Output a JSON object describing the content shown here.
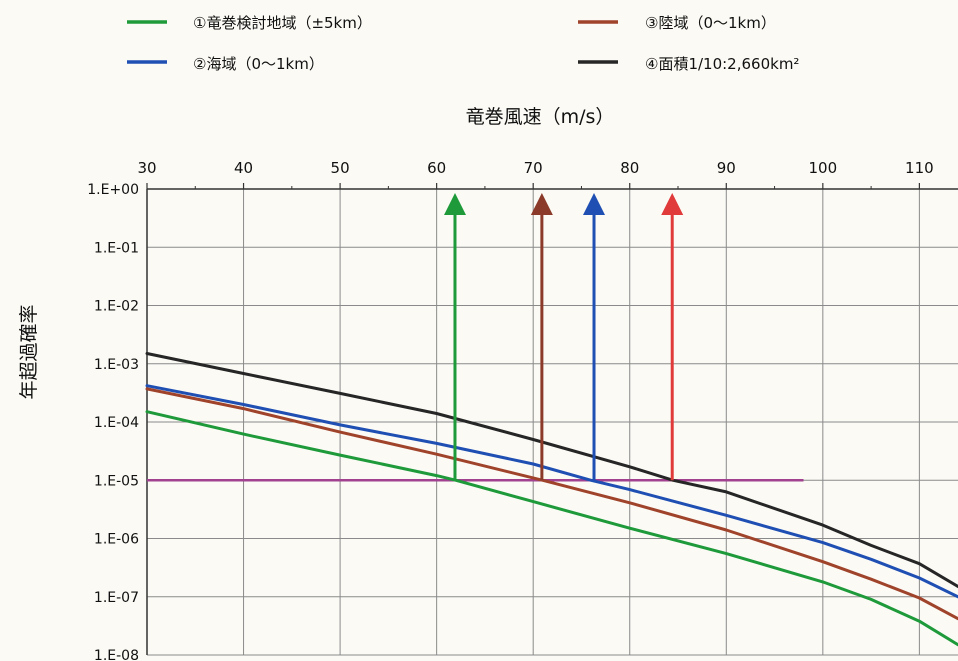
{
  "chart_data": {
    "type": "line",
    "xlabel": "竜巻風速（m/s）",
    "ylabel": "年超過確率",
    "x_scale": "linear",
    "y_scale": "log",
    "xlim": [
      30,
      114
    ],
    "ylim": [
      1e-08,
      1
    ],
    "x_ticks": [
      30,
      40,
      50,
      60,
      70,
      80,
      90,
      100,
      110
    ],
    "x_tick_labels": [
      "30",
      "40",
      "50",
      "60",
      "70",
      "80",
      "90",
      "100",
      "110"
    ],
    "y_ticks": [
      1,
      0.1,
      0.01,
      0.001,
      0.0001,
      1e-05,
      1e-06,
      1e-07,
      1e-08
    ],
    "y_tick_labels": [
      "1.E+00",
      "1.E-01",
      "1.E-02",
      "1.E-03",
      "1.E-04",
      "1.E-05",
      "1.E-06",
      "1.E-07",
      "1.E-08"
    ],
    "x_axis_position": "top",
    "grid": true,
    "legend_position": "top",
    "legend_items": [
      "①竜巻検討地域（±5km）",
      "②海域（0～1km）",
      "③陸域（0～1km）",
      "④面積1/10:2,660km²"
    ],
    "series": [
      {
        "name": "①竜巻検討地域（±5km）",
        "color": "#1e9a3a",
        "x": [
          30,
          40,
          50,
          60,
          62,
          70,
          80,
          90,
          100,
          105,
          110,
          114
        ],
        "y": [
          0.00015,
          6.2e-05,
          2.7e-05,
          1.2e-05,
          1e-05,
          4.3e-06,
          1.5e-06,
          5.5e-07,
          1.8e-07,
          9e-08,
          3.8e-08,
          1.5e-08
        ]
      },
      {
        "name": "②海域（0～1km）",
        "color": "#1f4fb3",
        "x": [
          30,
          40,
          50,
          60,
          70,
          76,
          80,
          90,
          100,
          105,
          110,
          114
        ],
        "y": [
          0.00042,
          0.0002,
          8.9e-05,
          4.3e-05,
          1.9e-05,
          1e-05,
          6.9e-06,
          2.5e-06,
          8.5e-07,
          4.4e-07,
          2.1e-07,
          1e-07
        ]
      },
      {
        "name": "③陸域（0～1km）",
        "color": "#a0432b",
        "x": [
          30,
          40,
          50,
          60,
          71,
          80,
          90,
          100,
          105,
          110,
          114
        ],
        "y": [
          0.00037,
          0.00017,
          6.7e-05,
          2.8e-05,
          1e-05,
          4.1e-06,
          1.4e-06,
          4e-07,
          2e-07,
          9.5e-08,
          4.2e-08
        ]
      },
      {
        "name": "④面積1/10:2,660km²",
        "color": "#262626",
        "x": [
          30,
          40,
          50,
          60,
          70,
          80,
          84.5,
          90,
          100,
          105,
          110,
          114
        ],
        "y": [
          0.0015,
          0.00068,
          0.00031,
          0.00014,
          5e-05,
          1.7e-05,
          1e-05,
          6.3e-06,
          1.7e-06,
          7.6e-07,
          3.7e-07,
          1.5e-07
        ]
      }
    ],
    "threshold_line": {
      "y": 1e-05,
      "x_start": 30,
      "x_end": 98,
      "color": "#a2418f"
    },
    "arrows": [
      {
        "x": 61.9,
        "color": "#1e9a3a"
      },
      {
        "x": 70.9,
        "color": "#8b3a2a"
      },
      {
        "x": 76.3,
        "color": "#1f4fb3"
      },
      {
        "x": 84.4,
        "color": "#e03a3a"
      }
    ]
  }
}
